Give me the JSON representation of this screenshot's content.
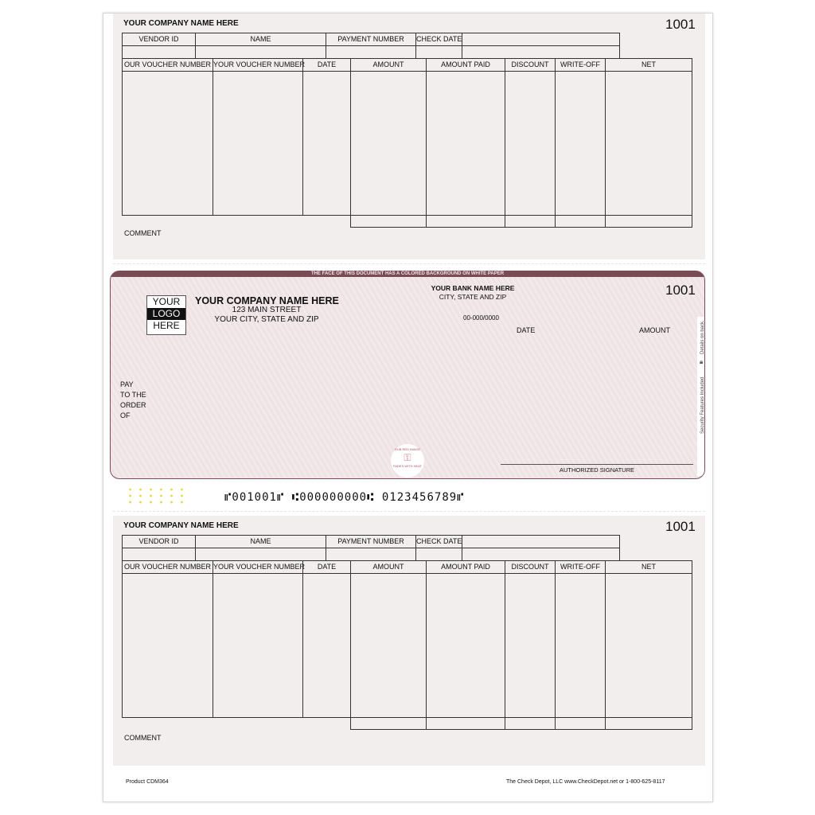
{
  "stub": {
    "company_name": "YOUR COMPANY NAME HERE",
    "check_number": "1001",
    "info_headers": [
      "VENDOR ID",
      "NAME",
      "PAYMENT NUMBER",
      "CHECK DATE"
    ],
    "table_headers": [
      "OUR VOUCHER NUMBER",
      "YOUR VOUCHER NUMBER",
      "DATE",
      "AMOUNT",
      "AMOUNT PAID",
      "DISCOUNT",
      "WRITE-OFF",
      "NET"
    ],
    "comment_label": "COMMENT"
  },
  "check": {
    "banner": "THE FACE OF THIS DOCUMENT HAS A COLORED BACKGROUND ON WHITE PAPER",
    "logo": [
      "YOUR",
      "LOGO",
      "HERE"
    ],
    "company_name": "YOUR COMPANY NAME HERE",
    "street": "123 MAIN STREET",
    "city": "YOUR CITY, STATE AND ZIP",
    "bank_name": "YOUR BANK NAME HERE",
    "bank_city": "CITY, STATE AND ZIP",
    "fraction": "00-000/0000",
    "check_number": "1001",
    "date_label": "DATE",
    "amount_label": "AMOUNT",
    "pay_label": [
      "PAY",
      "TO THE",
      "ORDER",
      "OF"
    ],
    "signature_label": "AUTHORIZED SIGNATURE",
    "seal_top": "RUB RED IMAGE",
    "seal_bottom": "FADES WITH HEAT",
    "security_side": "Security Features Included",
    "details_side": "Details on back.",
    "micr": "⑈001001⑈ ⑆000000000⑆ 0123456789⑈"
  },
  "footer": {
    "product": "Product CDM364",
    "vendor": "The Check Depot, LLC  www.CheckDepot.net  or  1-800-625-8117"
  },
  "colors": {
    "check_accent": "#7a4b55",
    "stub_bg": "#f3eeee",
    "check_bg": "#efe4e6"
  }
}
